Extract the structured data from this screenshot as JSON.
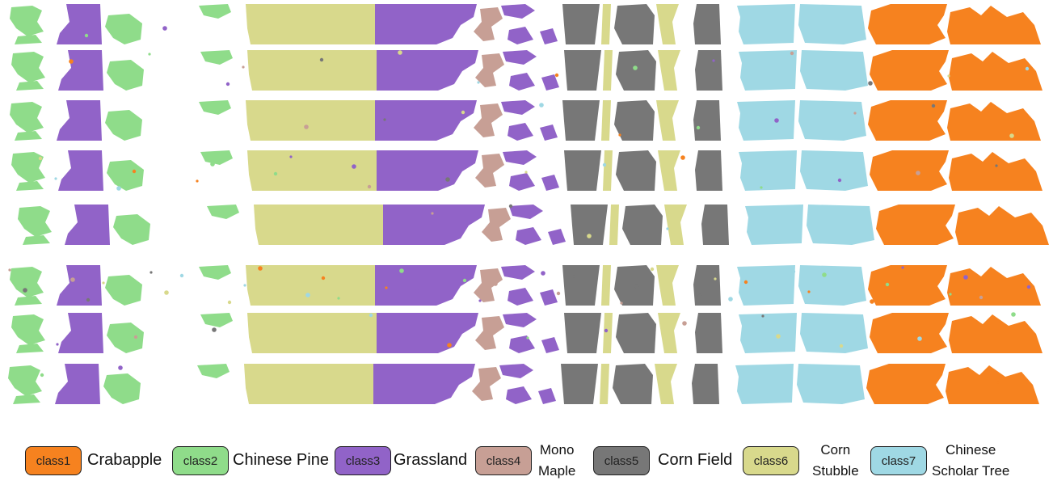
{
  "colors": {
    "class1": "#f6821f",
    "class2": "#8fdc8a",
    "class3": "#9163c8",
    "class4": "#c79f95",
    "class5": "#777777",
    "class6": "#d8d98c",
    "class7": "#9fd8e4"
  },
  "legend": [
    {
      "code": "class1",
      "label": "Crabapple",
      "color": "#f6821f"
    },
    {
      "code": "class2",
      "label": "Chinese Pine",
      "color": "#8fdc8a"
    },
    {
      "code": "class3",
      "label": "Grassland",
      "color": "#9163c8"
    },
    {
      "code": "class4",
      "label": "Mono Maple",
      "line1": "Mono",
      "line2": "Maple",
      "color": "#c79f95"
    },
    {
      "code": "class5",
      "label": "Corn Field",
      "color": "#777777"
    },
    {
      "code": "class6",
      "label": "Corn Stubble",
      "line1": "Corn",
      "line2": "Stubble",
      "color": "#d8d98c"
    },
    {
      "code": "class7",
      "label": "Chinese Scholar Tree",
      "line1": "Chinese",
      "line2": "Scholar Tree",
      "color": "#9fd8e4"
    }
  ],
  "rows": 8
}
